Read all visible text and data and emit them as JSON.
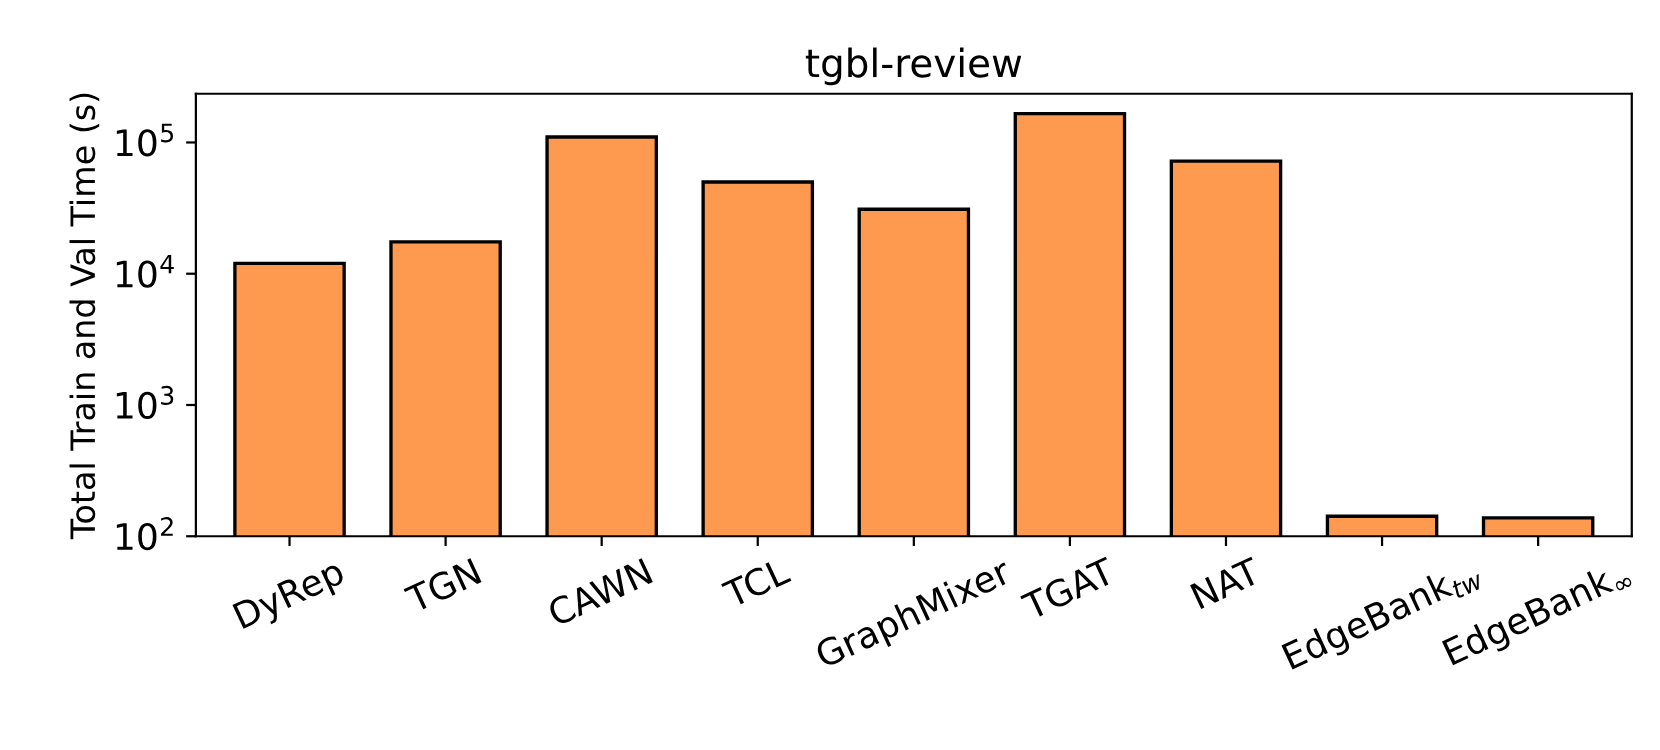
{
  "chart_data": {
    "type": "bar",
    "title": "tgbl-review",
    "ylabel": "Total Train and Val Time (s)",
    "categories": [
      "DyRep",
      "TGN",
      "CAWN",
      "TCL",
      "GraphMixer",
      "TGAT",
      "NAT",
      "EdgeBank$_{tw}$",
      "EdgeBank$_{∞}$"
    ],
    "values": [
      12000,
      17500,
      110000,
      50000,
      31000,
      166000,
      72000,
      142,
      138
    ],
    "color": "#fd9a4f",
    "log": true,
    "ylim": [
      100,
      235000
    ],
    "yticks": [
      {
        "value": 100,
        "label": "10$^{2}$"
      },
      {
        "value": 1000,
        "label": "10$^{3}$"
      },
      {
        "value": 10000,
        "label": "10$^{4}$"
      },
      {
        "value": 100000,
        "label": "10$^{5}$"
      }
    ],
    "grid": false,
    "legend": false
  }
}
